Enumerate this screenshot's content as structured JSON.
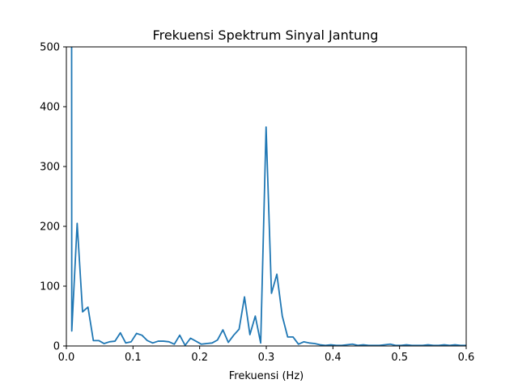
{
  "chart_data": {
    "type": "line",
    "title": "Frekuensi Spektrum Sinyal Jantung",
    "xlabel": "Frekuensi (Hz)",
    "ylabel": "",
    "xlim": [
      0,
      0.6
    ],
    "ylim": [
      0,
      500
    ],
    "xticks": [
      "0.0",
      "0.1",
      "0.2",
      "0.3",
      "0.4",
      "0.5",
      "0.6"
    ],
    "yticks": [
      "0",
      "100",
      "200",
      "300",
      "400",
      "500"
    ],
    "grid": false,
    "line_color": "#1f77b4",
    "series": [
      {
        "x": [
          0.0079,
          0.0081,
          0.0162,
          0.0243,
          0.0324,
          0.0405,
          0.0486,
          0.0567,
          0.0648,
          0.0729,
          0.081,
          0.0891,
          0.0972,
          0.1053,
          0.1134,
          0.1215,
          0.1296,
          0.1377,
          0.1458,
          0.1539,
          0.162,
          0.1701,
          0.1782,
          0.1863,
          0.1944,
          0.2025,
          0.2106,
          0.2187,
          0.2268,
          0.2349,
          0.243,
          0.2511,
          0.2592,
          0.2673,
          0.2754,
          0.2835,
          0.2916,
          0.2997,
          0.3078,
          0.3159,
          0.324,
          0.3321,
          0.3402,
          0.3483,
          0.3564,
          0.3645,
          0.3726,
          0.3807,
          0.3888,
          0.3969,
          0.405,
          0.4131,
          0.4212,
          0.4293,
          0.4374,
          0.4455,
          0.4536,
          0.4617,
          0.4698,
          0.4779,
          0.486,
          0.4941,
          0.5022,
          0.5103,
          0.5184,
          0.5265,
          0.5346,
          0.5427,
          0.5508,
          0.5589,
          0.567,
          0.5751,
          0.5832,
          0.5913,
          0.6
        ],
        "y": [
          500,
          25,
          205,
          57,
          65,
          9,
          9,
          4,
          7,
          8,
          22,
          5,
          7,
          21,
          18,
          9,
          5,
          8,
          8,
          7,
          3,
          18,
          1,
          13,
          8,
          3,
          4,
          5,
          10,
          27,
          6,
          18,
          28,
          82,
          19,
          50,
          5,
          366,
          88,
          120,
          50,
          15,
          15,
          3,
          7,
          5,
          4,
          2,
          1,
          2,
          1,
          1,
          2,
          3,
          1,
          2,
          1,
          1,
          1,
          2,
          3,
          1,
          1,
          2,
          1,
          1,
          1,
          2,
          1,
          1,
          2,
          1,
          2,
          1,
          1
        ]
      }
    ]
  }
}
